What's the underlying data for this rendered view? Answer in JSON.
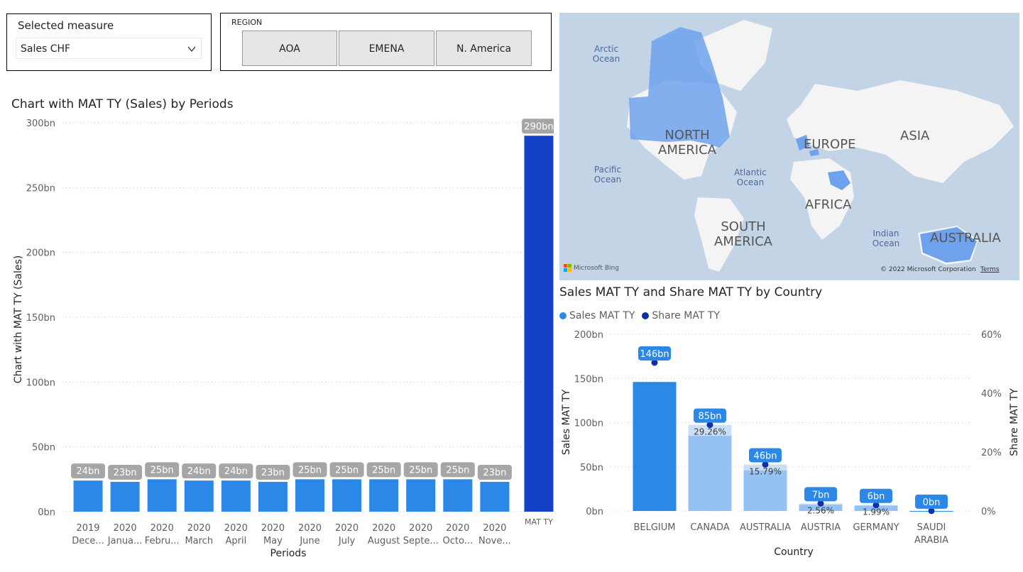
{
  "measure_slicer": {
    "title": "Selected measure",
    "selected": "Sales CHF"
  },
  "region_slicer": {
    "title": "REGION",
    "options": [
      "AOA",
      "EMENA",
      "N. America"
    ]
  },
  "map": {
    "ocean_labels": [
      "Arctic Ocean",
      "Pacific Ocean",
      "Atlantic Ocean",
      "Indian Ocean"
    ],
    "continent_labels": [
      "NORTH AMERICA",
      "EUROPE",
      "ASIA",
      "AFRICA",
      "SOUTH AMERICA",
      "AUSTRALIA"
    ],
    "bing_label": "Microsoft Bing",
    "copyright": "© 2022 Microsoft Corporation",
    "terms": "Terms"
  },
  "colors": {
    "bar": "#2b88e7",
    "mat_bar": "#1541c8",
    "label_bg": "#a6a6a6",
    "share_dot": "#0f2fa8",
    "light_bar": "#b9d6f5"
  },
  "chart_data": [
    {
      "type": "bar",
      "title": "Chart with MAT TY (Sales) by Periods",
      "xlabel": "Periods",
      "ylabel": "Chart with MAT TY (Sales)",
      "ylim": [
        0,
        300
      ],
      "yticks": [
        "0bn",
        "50bn",
        "100bn",
        "150bn",
        "200bn",
        "250bn",
        "300bn"
      ],
      "categories": [
        [
          "2019",
          "Dece..."
        ],
        [
          "2020",
          "Janua..."
        ],
        [
          "2020",
          "Febru..."
        ],
        [
          "2020",
          "March"
        ],
        [
          "2020",
          "April"
        ],
        [
          "2020",
          "May"
        ],
        [
          "2020",
          "June"
        ],
        [
          "2020",
          "July"
        ],
        [
          "2020",
          "August"
        ],
        [
          "2020",
          "Septe..."
        ],
        [
          "2020",
          "Octo..."
        ],
        [
          "2020",
          "Nove..."
        ],
        [
          "MAT TY",
          ""
        ]
      ],
      "values": [
        24,
        23,
        25,
        24,
        24,
        23,
        25,
        25,
        25,
        25,
        25,
        23,
        290
      ],
      "labels": [
        "24bn",
        "23bn",
        "25bn",
        "24bn",
        "24bn",
        "23bn",
        "25bn",
        "25bn",
        "25bn",
        "25bn",
        "25bn",
        "23bn",
        "290bn"
      ],
      "grid": true
    },
    {
      "type": "bar",
      "title": "Sales MAT TY and Share MAT TY by Country",
      "xlabel": "Country",
      "ylabel": "Sales MAT TY",
      "y2label": "Share MAT TY",
      "ylim": [
        0,
        200
      ],
      "y2lim": [
        0,
        60
      ],
      "yticks": [
        "0bn",
        "50bn",
        "100bn",
        "150bn",
        "200bn"
      ],
      "y2ticks": [
        "0%",
        "20%",
        "40%",
        "60%"
      ],
      "legend": [
        "Sales MAT TY",
        "Share MAT TY"
      ],
      "categories": [
        [
          "BELGIUM",
          ""
        ],
        [
          "CANADA",
          ""
        ],
        [
          "AUSTRALIA",
          ""
        ],
        [
          "AUSTRIA",
          ""
        ],
        [
          "GERMANY",
          ""
        ],
        [
          "SAUDI",
          "ARABIA"
        ]
      ],
      "series": [
        {
          "name": "Sales MAT TY",
          "values": [
            146,
            85,
            46,
            7,
            6,
            0
          ],
          "labels": [
            "146bn",
            "85bn",
            "46bn",
            "7bn",
            "6bn",
            "0bn"
          ]
        },
        {
          "name": "Share MAT TY",
          "values": [
            50.37,
            29.26,
            15.79,
            2.56,
            1.99,
            0.03
          ],
          "labels": [
            "",
            "29.26%",
            "15.79%",
            "2.56%",
            "1.99%",
            ""
          ]
        }
      ]
    }
  ]
}
